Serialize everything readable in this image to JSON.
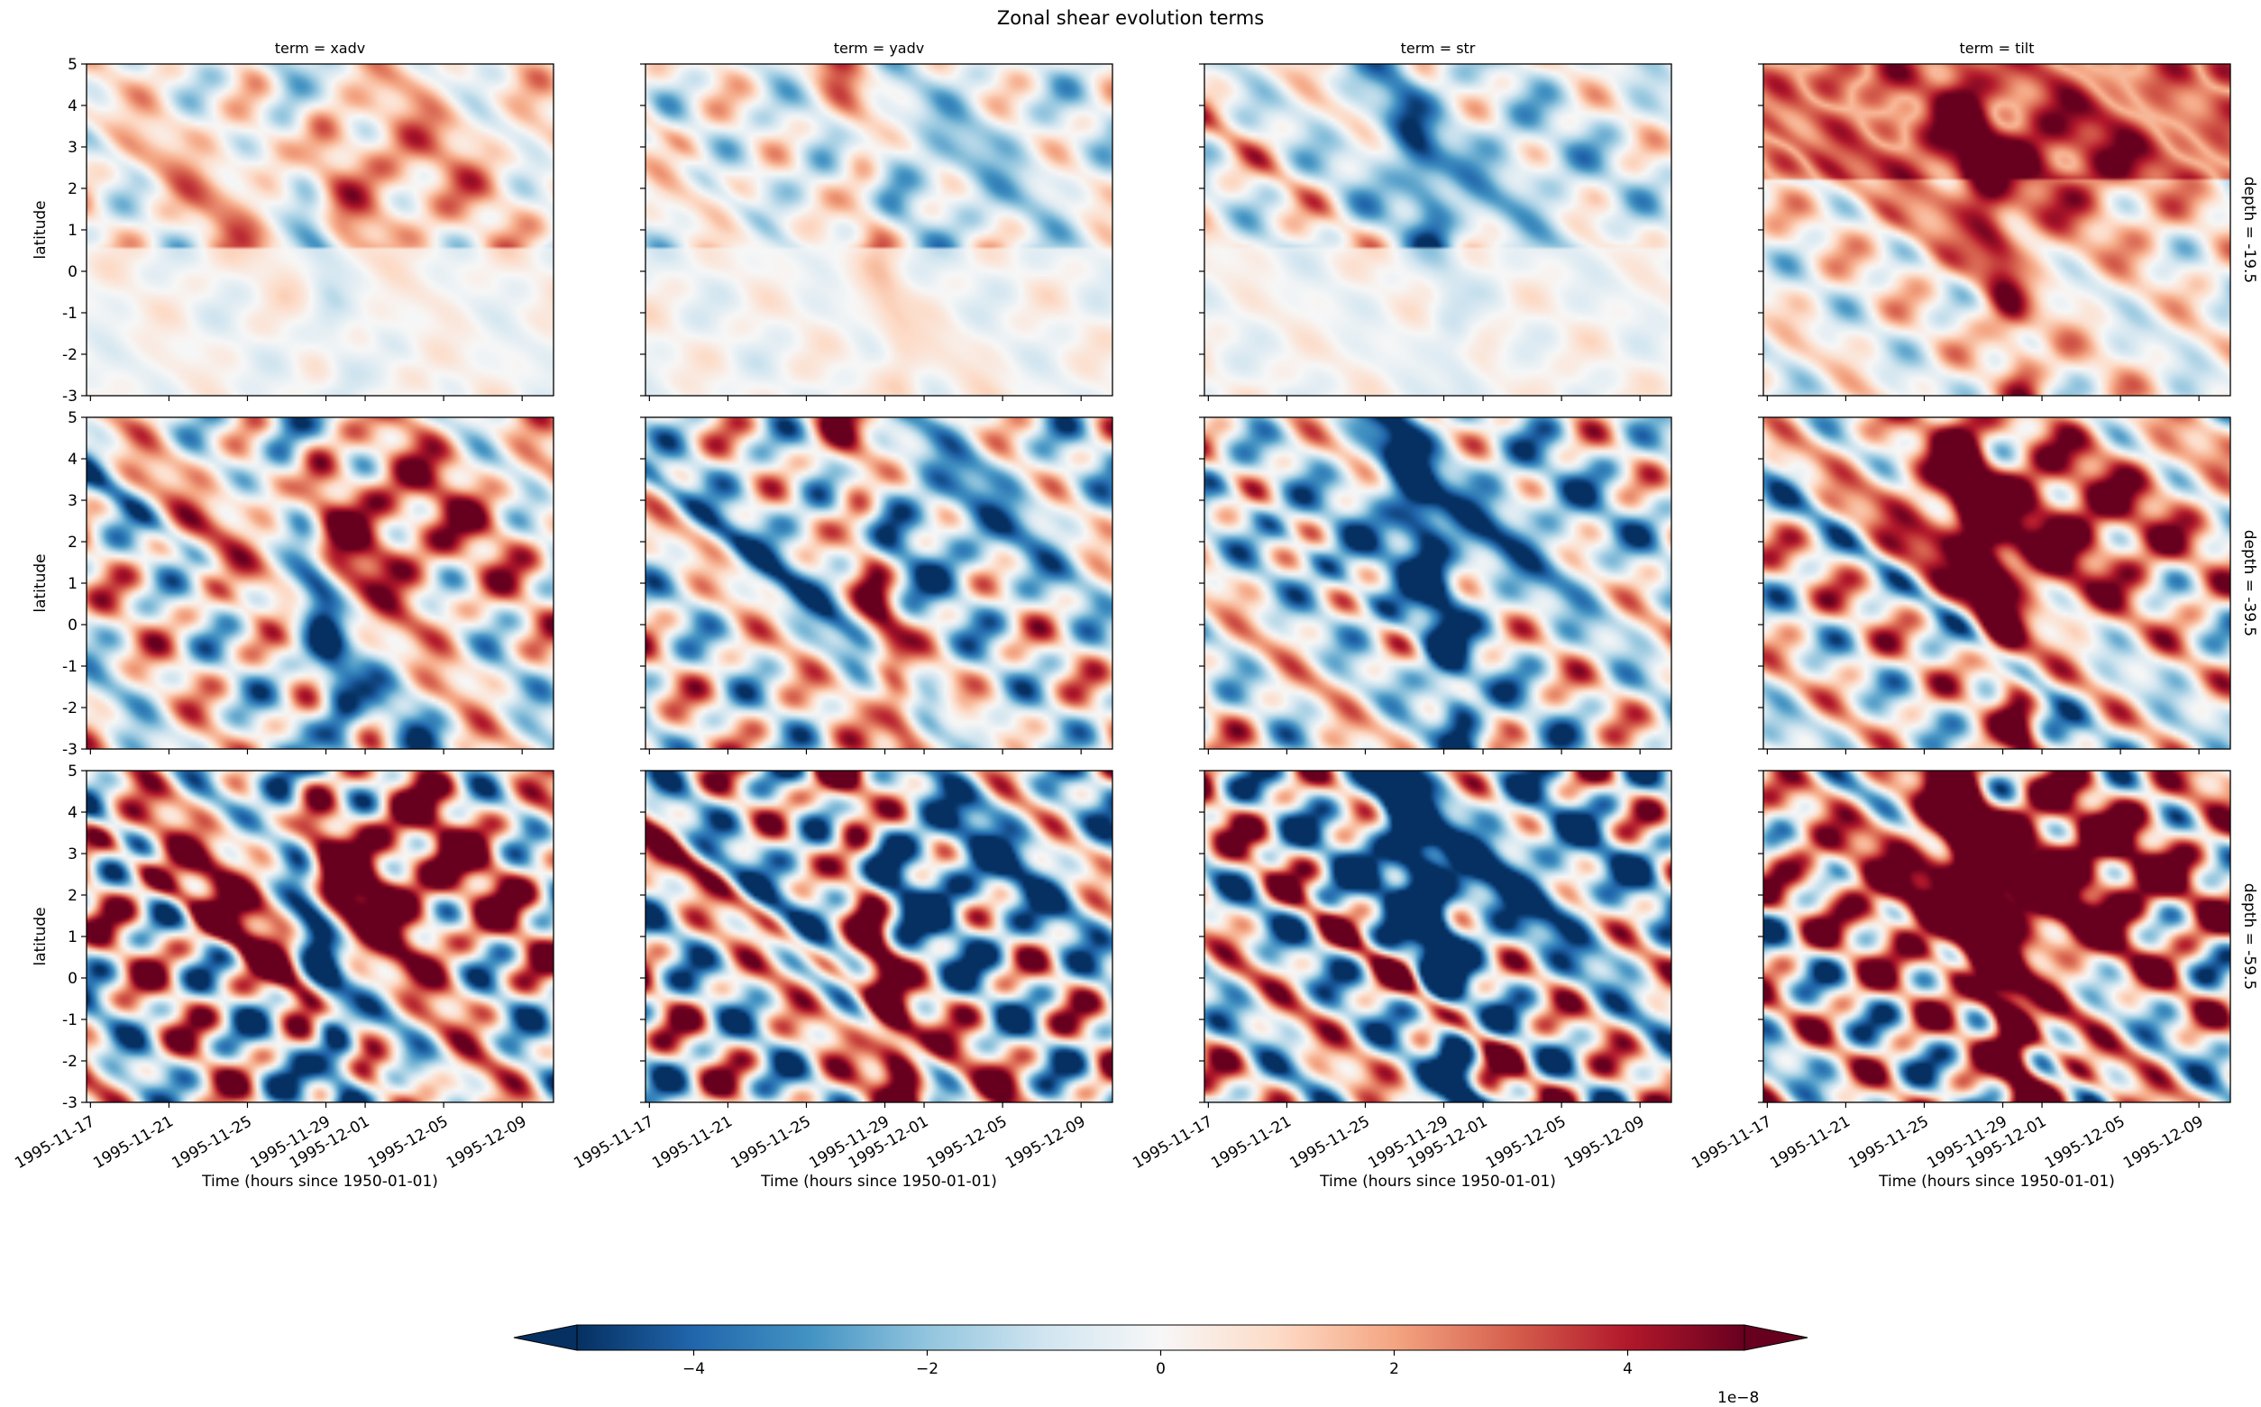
{
  "chart_data": {
    "type": "heatmap",
    "title": "Zonal shear evolution terms",
    "column_facet_titles": [
      "term = xadv",
      "term = yadv",
      "term = str",
      "term = tilt"
    ],
    "row_facet_titles": [
      "depth = -19.5",
      "depth = -39.5",
      "depth = -59.5"
    ],
    "xlabel": "Time (hours since 1950-01-01)",
    "ylabel": "latitude",
    "x_tick_labels": [
      "1995-11-17",
      "1995-11-21",
      "1995-11-25",
      "1995-11-29",
      "1995-12-01",
      "1995-12-05",
      "1995-12-09"
    ],
    "x_tick_days": [
      0,
      4,
      8,
      12,
      14,
      18,
      22
    ],
    "x_range_days": [
      -0.2,
      23.6
    ],
    "y_tick_labels": [
      "-3",
      "-2",
      "-1",
      "0",
      "1",
      "2",
      "3",
      "4",
      "5"
    ],
    "ylim": [
      -3,
      5
    ],
    "colorbar": {
      "colormap": "RdBu_r",
      "range": [
        -5,
        5
      ],
      "extend": "both",
      "tick_labels": [
        "−4",
        "−2",
        "0",
        "2",
        "4"
      ],
      "tick_values": [
        -4,
        -2,
        0,
        2,
        4
      ],
      "offset_label": "1e−8"
    }
  }
}
